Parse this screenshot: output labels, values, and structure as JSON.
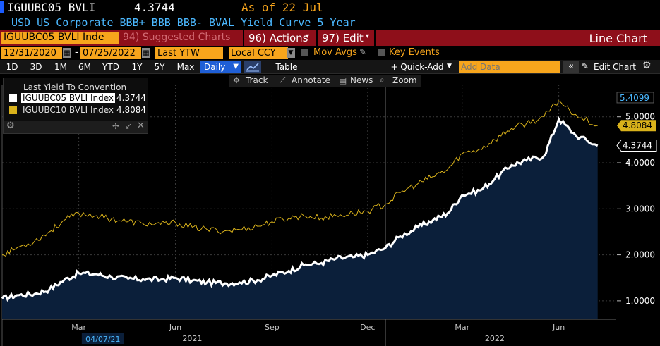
{
  "header": {
    "ticker": "IGUUBC05 BVLI",
    "price": "4.3744",
    "as_of": "As of 22 Jul",
    "description": "USD US Corporate BBB+ BBB BBB- BVAL Yield Curve 5 Year"
  },
  "menubar": {
    "security_field": "IGUUBC05 BVLI Inde",
    "suggested": "94) Suggested Charts",
    "actions": "96) Actions",
    "edit": "97) Edit",
    "view_name": "Line Chart"
  },
  "controls": {
    "start_date": "12/31/2020",
    "end_date": "07/25/2022",
    "dash": "-",
    "field": "Last YTW",
    "currency": "Local CCY",
    "mov_avgs": "Mov Avgs",
    "key_events": "Key Events"
  },
  "toolbar": {
    "ranges": [
      "1D",
      "3D",
      "1M",
      "6M",
      "YTD",
      "1Y",
      "5Y",
      "Max"
    ],
    "period": "Daily",
    "table": "Table",
    "quick_add": "+ Quick-Add",
    "add_data_placeholder": "Add Data",
    "edit_chart": "Edit Chart"
  },
  "chart_tools": {
    "track": "Track",
    "annotate": "Annotate",
    "news": "News",
    "zoom": "Zoom"
  },
  "legend": {
    "title": "Last Yield To Convention",
    "items": [
      {
        "name": "IGUUBC05 BVLI Index",
        "value": "4.3744",
        "color": "#ffffff"
      },
      {
        "name": "IGUUBC10 BVLI Index",
        "value": "4.8084",
        "color": "#d9b21b"
      }
    ]
  },
  "colors": {
    "accent_orange": "#f7a51c",
    "menu_red": "#8e0f1a",
    "area_fill": "#0b1f3a",
    "series1": "#ffffff",
    "series2": "#d9b21b"
  },
  "chart_data": {
    "type": "area",
    "ylim": [
      0.6,
      5.7
    ],
    "y_ticks": [
      "1.0000",
      "2.0000",
      "3.0000",
      "4.0000",
      "5.0000"
    ],
    "x_ticks": [
      "Mar",
      "Jun",
      "Sep",
      "Dec",
      "Mar",
      "Jun"
    ],
    "x_year_labels": [
      "2021",
      "2022"
    ],
    "cursor_date": "04/07/21",
    "last_value_labels": [
      "5.4099",
      "4.8084",
      "4.3744"
    ],
    "series": [
      {
        "name": "IGUUBC05 BVLI Index",
        "x": [
          "2021-01-01",
          "2021-01-15",
          "2021-02-01",
          "2021-02-15",
          "2021-03-01",
          "2021-03-15",
          "2021-04-01",
          "2021-04-15",
          "2021-05-01",
          "2021-05-15",
          "2021-06-01",
          "2021-06-15",
          "2021-07-01",
          "2021-07-15",
          "2021-08-01",
          "2021-08-15",
          "2021-09-01",
          "2021-09-15",
          "2021-10-01",
          "2021-10-15",
          "2021-11-01",
          "2021-11-15",
          "2021-12-01",
          "2021-12-15",
          "2022-01-01",
          "2022-01-15",
          "2022-02-01",
          "2022-02-15",
          "2022-03-01",
          "2022-03-15",
          "2022-04-01",
          "2022-04-15",
          "2022-05-01",
          "2022-05-15",
          "2022-06-01",
          "2022-06-15",
          "2022-07-01",
          "2022-07-22"
        ],
        "values": [
          1.05,
          1.12,
          1.15,
          1.25,
          1.45,
          1.6,
          1.58,
          1.52,
          1.48,
          1.47,
          1.46,
          1.5,
          1.44,
          1.4,
          1.38,
          1.4,
          1.45,
          1.55,
          1.65,
          1.78,
          1.82,
          1.92,
          1.95,
          2.0,
          2.15,
          2.4,
          2.6,
          2.75,
          2.9,
          3.3,
          3.4,
          3.65,
          3.95,
          4.05,
          4.15,
          4.95,
          4.6,
          4.37
        ]
      },
      {
        "name": "IGUUBC10 BVLI Index",
        "x": [
          "2021-01-01",
          "2021-01-15",
          "2021-02-01",
          "2021-02-15",
          "2021-03-01",
          "2021-03-15",
          "2021-04-01",
          "2021-04-15",
          "2021-05-01",
          "2021-05-15",
          "2021-06-01",
          "2021-06-15",
          "2021-07-01",
          "2021-07-15",
          "2021-08-01",
          "2021-08-15",
          "2021-09-01",
          "2021-09-15",
          "2021-10-01",
          "2021-10-15",
          "2021-11-01",
          "2021-11-15",
          "2021-12-01",
          "2021-12-15",
          "2022-01-01",
          "2022-01-15",
          "2022-02-01",
          "2022-02-15",
          "2022-03-01",
          "2022-03-15",
          "2022-04-01",
          "2022-04-15",
          "2022-05-01",
          "2022-05-15",
          "2022-06-01",
          "2022-06-15",
          "2022-07-01",
          "2022-07-22"
        ],
        "values": [
          2.0,
          2.15,
          2.3,
          2.5,
          2.75,
          2.9,
          2.85,
          2.78,
          2.72,
          2.68,
          2.66,
          2.7,
          2.6,
          2.55,
          2.52,
          2.55,
          2.62,
          2.72,
          2.8,
          2.85,
          2.8,
          2.85,
          2.9,
          2.95,
          3.1,
          3.35,
          3.55,
          3.7,
          3.85,
          4.2,
          4.3,
          4.5,
          4.75,
          4.85,
          5.0,
          5.35,
          5.05,
          4.81
        ]
      }
    ]
  }
}
